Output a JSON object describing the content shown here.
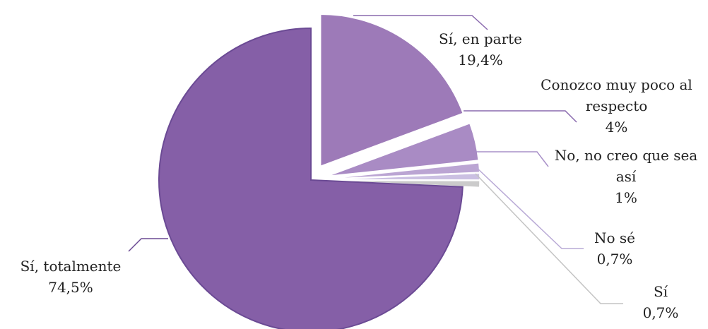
{
  "chart_data": {
    "type": "pie",
    "categories": [
      "Sí, en parte",
      "Conozco muy poco al respecto",
      "No, no creo que sea así",
      "No sé",
      "Sí",
      "Sí, totalmente"
    ],
    "values": [
      19.4,
      4,
      1,
      0.7,
      0.7,
      74.5
    ],
    "value_labels": [
      "19,4%",
      "4%",
      "1%",
      "0,7%",
      "0,7%",
      "74,5%"
    ],
    "colors": [
      "#9d7ab8",
      "#a98bc4",
      "#bba5d3",
      "#cbc0e2",
      "#cbcbcb",
      "#855fa7"
    ]
  }
}
